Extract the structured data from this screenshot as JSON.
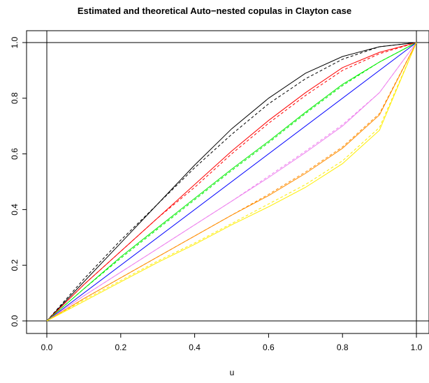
{
  "chart_data": {
    "type": "line",
    "title": "Estimated and theoretical Auto−nested copulas in Clayton case",
    "xlabel": "u",
    "ylabel": "",
    "xlim": [
      0,
      1
    ],
    "ylim": [
      0,
      1
    ],
    "x_ticks": [
      "0.0",
      "0.2",
      "0.4",
      "0.6",
      "0.8",
      "1.0"
    ],
    "y_ticks": [
      "0.0",
      "0.2",
      "0.4",
      "0.6",
      "0.8",
      "1.0"
    ],
    "grid": false,
    "legend": "none",
    "reference_lines": {
      "horizontal": [
        0,
        1
      ],
      "vertical": [
        0,
        1
      ]
    },
    "series": [
      {
        "color": "#000000",
        "style": "estimated-solid",
        "x": [
          0,
          0.1,
          0.2,
          0.3,
          0.4,
          0.5,
          0.6,
          0.7,
          0.8,
          0.9,
          1.0
        ],
        "values": [
          0,
          0.14,
          0.28,
          0.42,
          0.56,
          0.69,
          0.8,
          0.89,
          0.95,
          0.985,
          1.0
        ]
      },
      {
        "color": "#000000",
        "style": "theoretical-dashed",
        "x": [
          0,
          0.1,
          0.2,
          0.3,
          0.4,
          0.5,
          0.6,
          0.7,
          0.8,
          0.9,
          1.0
        ],
        "values": [
          0,
          0.15,
          0.29,
          0.42,
          0.55,
          0.67,
          0.78,
          0.87,
          0.94,
          0.985,
          1.0
        ]
      },
      {
        "color": "#ff0000",
        "style": "estimated-solid",
        "x": [
          0,
          0.1,
          0.2,
          0.3,
          0.4,
          0.5,
          0.6,
          0.7,
          0.8,
          0.9,
          1.0
        ],
        "values": [
          0,
          0.13,
          0.25,
          0.37,
          0.49,
          0.61,
          0.72,
          0.82,
          0.91,
          0.965,
          1.0
        ]
      },
      {
        "color": "#ff0000",
        "style": "theoretical-dashed",
        "x": [
          0,
          0.1,
          0.2,
          0.3,
          0.4,
          0.5,
          0.6,
          0.7,
          0.8,
          0.9,
          1.0
        ],
        "values": [
          0,
          0.13,
          0.25,
          0.37,
          0.48,
          0.6,
          0.71,
          0.81,
          0.9,
          0.96,
          1.0
        ]
      },
      {
        "color": "#00ee00",
        "style": "estimated-solid",
        "x": [
          0,
          0.1,
          0.2,
          0.3,
          0.4,
          0.5,
          0.6,
          0.7,
          0.8,
          0.9,
          1.0
        ],
        "values": [
          0,
          0.115,
          0.23,
          0.335,
          0.44,
          0.545,
          0.645,
          0.75,
          0.85,
          0.93,
          1.0
        ]
      },
      {
        "color": "#00ee00",
        "style": "theoretical-dashed",
        "x": [
          0,
          0.1,
          0.2,
          0.3,
          0.4,
          0.5,
          0.6,
          0.7,
          0.8,
          0.9,
          1.0
        ],
        "values": [
          0,
          0.115,
          0.225,
          0.33,
          0.435,
          0.54,
          0.64,
          0.745,
          0.845,
          0.93,
          1.0
        ]
      },
      {
        "color": "#0000ff",
        "style": "estimated-solid",
        "x": [
          0,
          1.0
        ],
        "values": [
          0,
          1.0
        ]
      },
      {
        "color": "#ee82ee",
        "style": "estimated-solid",
        "x": [
          0,
          0.1,
          0.2,
          0.3,
          0.4,
          0.5,
          0.6,
          0.7,
          0.8,
          0.9,
          1.0
        ],
        "values": [
          0,
          0.09,
          0.175,
          0.26,
          0.345,
          0.43,
          0.515,
          0.605,
          0.7,
          0.82,
          1.0
        ]
      },
      {
        "color": "#ee82ee",
        "style": "theoretical-dashed",
        "x": [
          0,
          0.1,
          0.2,
          0.3,
          0.4,
          0.5,
          0.6,
          0.7,
          0.8,
          0.9,
          1.0
        ],
        "values": [
          0,
          0.09,
          0.175,
          0.26,
          0.345,
          0.43,
          0.52,
          0.61,
          0.705,
          0.82,
          1.0
        ]
      },
      {
        "color": "#ff8c00",
        "style": "estimated-solid",
        "x": [
          0,
          0.1,
          0.2,
          0.3,
          0.4,
          0.5,
          0.6,
          0.7,
          0.8,
          0.9,
          1.0
        ],
        "values": [
          0,
          0.08,
          0.155,
          0.23,
          0.305,
          0.38,
          0.45,
          0.53,
          0.62,
          0.74,
          1.0
        ]
      },
      {
        "color": "#ff8c00",
        "style": "theoretical-dashed",
        "x": [
          0,
          0.1,
          0.2,
          0.3,
          0.4,
          0.5,
          0.6,
          0.7,
          0.8,
          0.9,
          1.0
        ],
        "values": [
          0,
          0.08,
          0.155,
          0.23,
          0.305,
          0.38,
          0.455,
          0.535,
          0.625,
          0.745,
          1.0
        ]
      },
      {
        "color": "#ffee00",
        "style": "estimated-solid",
        "x": [
          0,
          0.1,
          0.2,
          0.3,
          0.4,
          0.5,
          0.6,
          0.7,
          0.8,
          0.9,
          1.0
        ],
        "values": [
          0,
          0.07,
          0.14,
          0.21,
          0.275,
          0.345,
          0.41,
          0.48,
          0.565,
          0.685,
          1.0
        ]
      },
      {
        "color": "#ffee00",
        "style": "theoretical-dashed",
        "x": [
          0,
          0.1,
          0.2,
          0.3,
          0.4,
          0.5,
          0.6,
          0.7,
          0.8,
          0.9,
          1.0
        ],
        "values": [
          0,
          0.075,
          0.145,
          0.215,
          0.28,
          0.35,
          0.42,
          0.49,
          0.575,
          0.695,
          1.0
        ]
      }
    ]
  }
}
